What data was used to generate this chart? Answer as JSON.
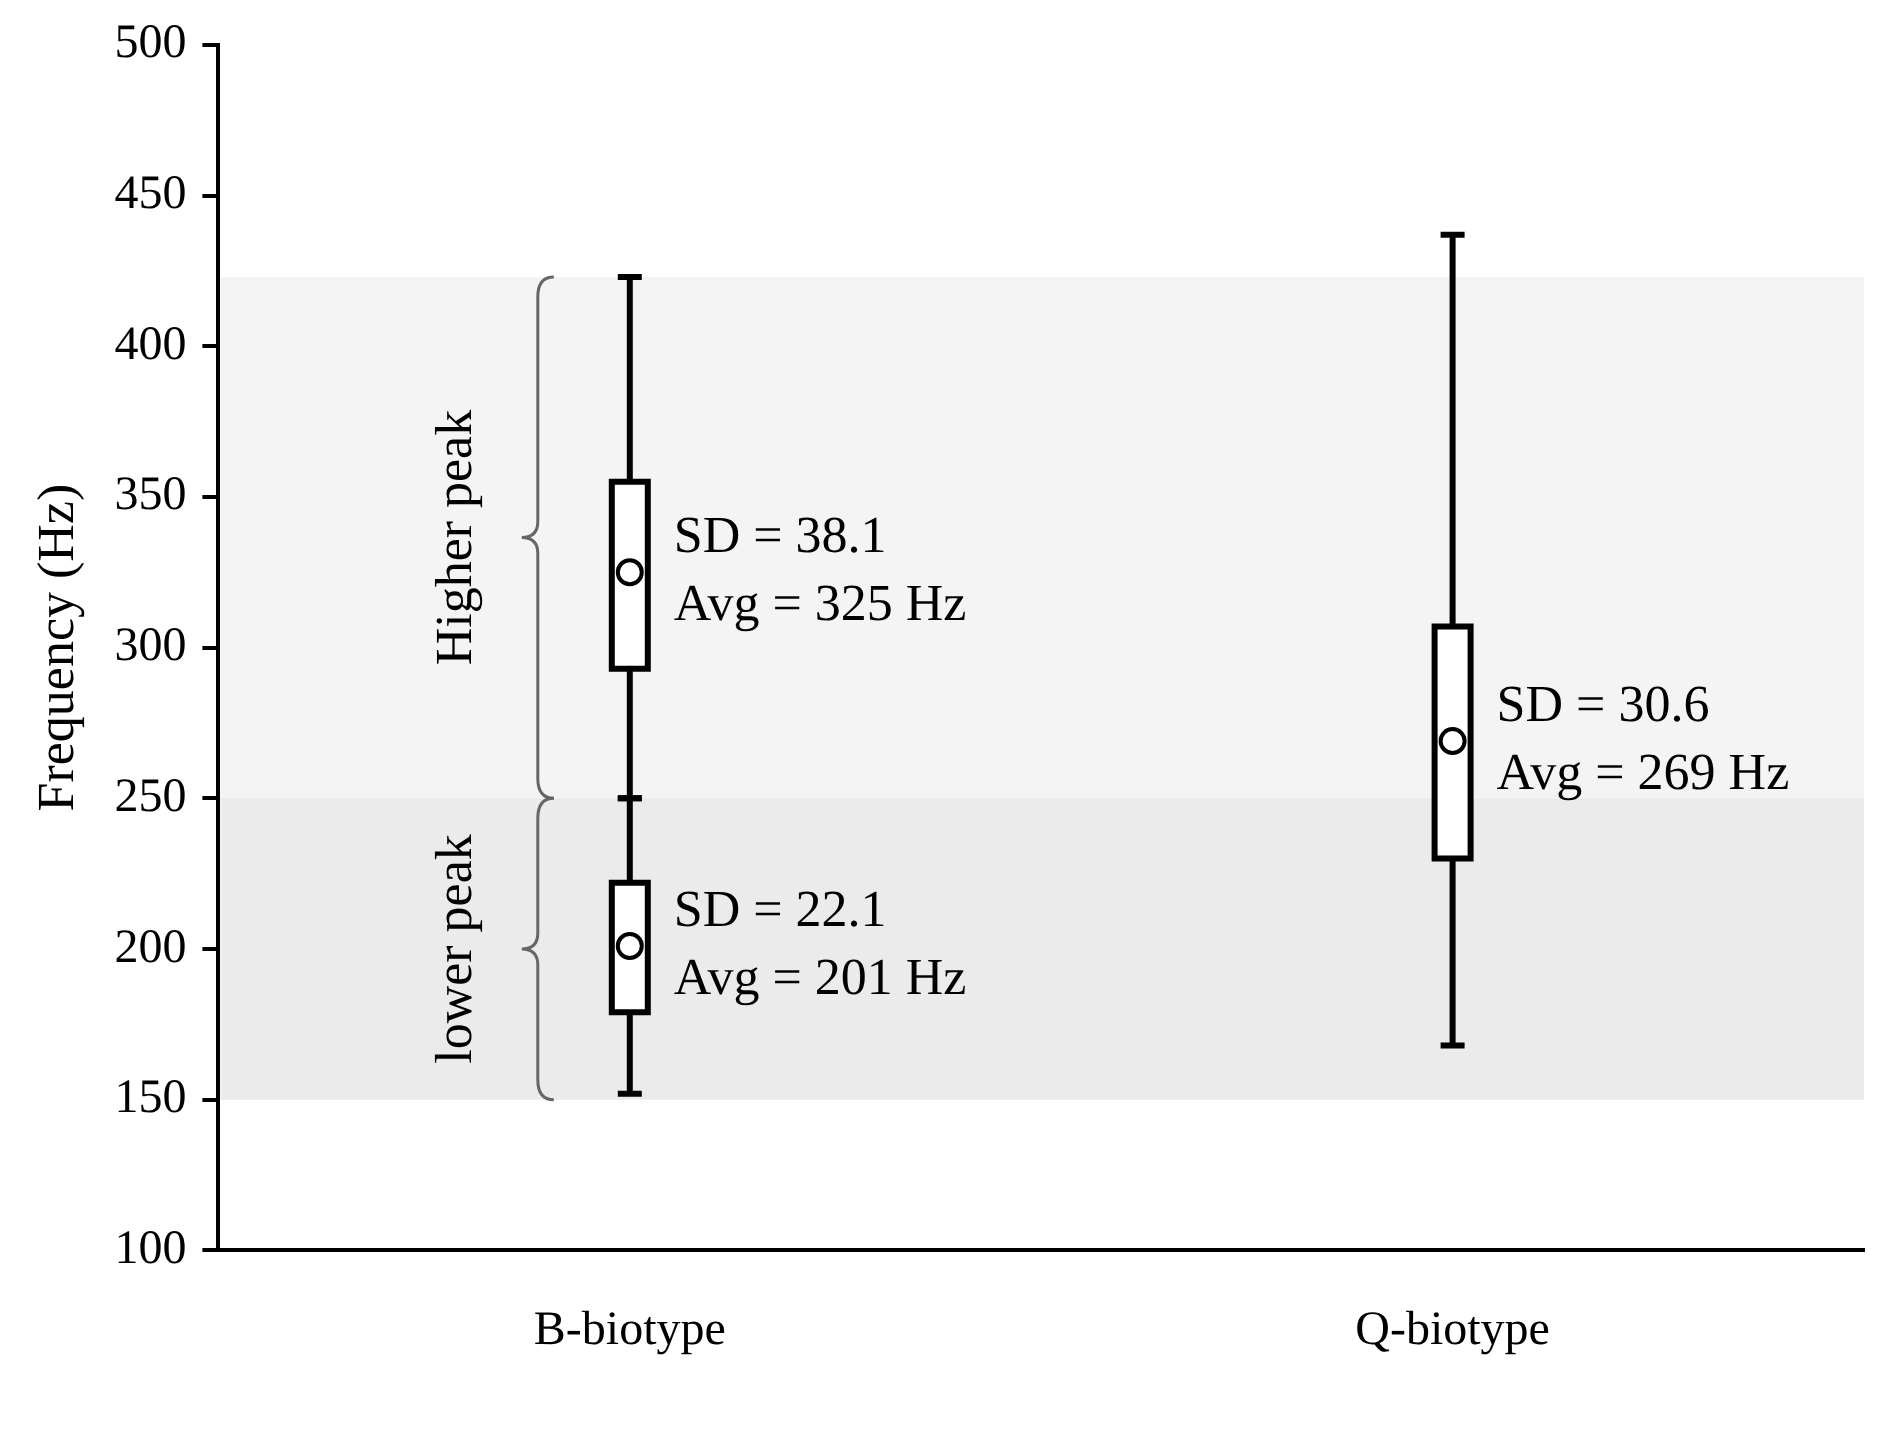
{
  "chart_data": {
    "type": "box",
    "ylabel": "Frequency (Hz)",
    "categories": [
      "B-biotype",
      "Q-biotype"
    ],
    "series": [
      {
        "boxes": [
          {
            "low": 250,
            "q1": 293,
            "median": 325,
            "q3": 355,
            "high": 423
          },
          null
        ]
      },
      {
        "boxes": [
          {
            "low": 152,
            "q1": 179,
            "median": 201,
            "q3": 222,
            "high": 250
          },
          null
        ]
      },
      {
        "boxes": [
          null,
          {
            "low": 168,
            "q1": 230,
            "median": 269,
            "q3": 307,
            "high": 437
          }
        ]
      }
    ],
    "ylim": [
      100,
      500
    ],
    "yticks": [
      100,
      150,
      200,
      250,
      300,
      350,
      400,
      450,
      500
    ],
    "grid": false,
    "legend": false,
    "bands": [
      {
        "axis": "y",
        "from": 250,
        "to": 423,
        "label": "Higher peak",
        "color": "#f4f4f4"
      },
      {
        "axis": "y",
        "from": 150,
        "to": 250,
        "label": "lower peak",
        "color": "#ebebeb"
      }
    ],
    "annotations": [
      {
        "text": "SD = 38.1\nAvg = 325 Hz",
        "x": "B-biotype",
        "y": 325
      },
      {
        "text": "SD = 22.1\nAvg = 201 Hz",
        "x": "B-biotype",
        "y": 201
      },
      {
        "text": "SD = 30.6\nAvg = 269 Hz",
        "x": "Q-biotype",
        "y": 269
      }
    ]
  }
}
